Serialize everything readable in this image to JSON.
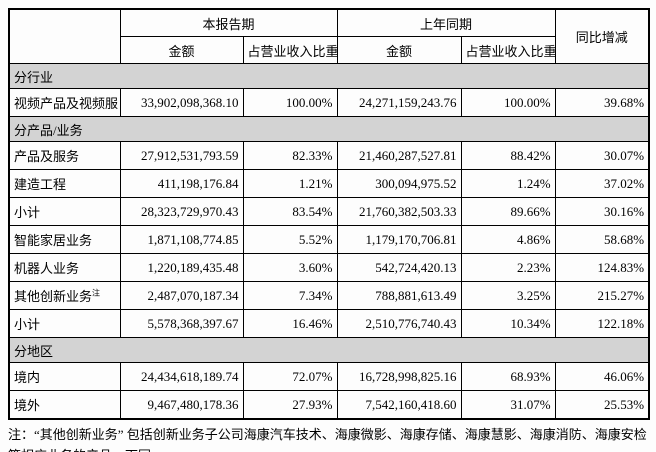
{
  "table": {
    "header": {
      "corner": "",
      "current_period": "本报告期",
      "prior_period": "上年同期",
      "yoy_change": "同比增减",
      "amount": "金额",
      "revenue_share": "占营业收入比重"
    },
    "rows": [
      {
        "type": "section",
        "label": "分行业"
      },
      {
        "type": "data",
        "label": "视频产品及视频服",
        "cells": [
          "33,902,098,368.10",
          "100.00%",
          "24,271,159,243.76",
          "100.00%",
          "39.68%"
        ]
      },
      {
        "type": "section",
        "label": "分产品/业务"
      },
      {
        "type": "data",
        "label": "产品及服务",
        "cells": [
          "27,912,531,793.59",
          "82.33%",
          "21,460,287,527.81",
          "88.42%",
          "30.07%"
        ]
      },
      {
        "type": "data",
        "label": "建造工程",
        "cells": [
          "411,198,176.84",
          "1.21%",
          "300,094,975.52",
          "1.24%",
          "37.02%"
        ]
      },
      {
        "type": "data",
        "label": "小计",
        "cells": [
          "28,323,729,970.43",
          "83.54%",
          "21,760,382,503.33",
          "89.66%",
          "30.16%"
        ]
      },
      {
        "type": "data",
        "label": "智能家居业务",
        "cells": [
          "1,871,108,774.85",
          "5.52%",
          "1,179,170,706.81",
          "4.86%",
          "58.68%"
        ]
      },
      {
        "type": "data",
        "label": "机器人业务",
        "cells": [
          "1,220,189,435.48",
          "3.60%",
          "542,724,420.13",
          "2.23%",
          "124.83%"
        ]
      },
      {
        "type": "data",
        "label": "其他创新业务",
        "label_sup": "注",
        "cells": [
          "2,487,070,187.34",
          "7.34%",
          "788,881,613.49",
          "3.25%",
          "215.27%"
        ]
      },
      {
        "type": "data",
        "label": "小计",
        "cells": [
          "5,578,368,397.67",
          "16.46%",
          "2,510,776,740.43",
          "10.34%",
          "122.18%"
        ]
      },
      {
        "type": "section",
        "label": "分地区"
      },
      {
        "type": "data",
        "label": "境内",
        "cells": [
          "24,434,618,189.74",
          "72.07%",
          "16,728,998,825.16",
          "68.93%",
          "46.06%"
        ]
      },
      {
        "type": "data",
        "label": "境外",
        "cells": [
          "9,467,480,178.36",
          "27.93%",
          "7,542,160,418.60",
          "31.07%",
          "25.53%"
        ]
      }
    ],
    "cell_names": [
      "amount-current",
      "share-current",
      "amount-prior",
      "share-prior",
      "yoy-change"
    ]
  },
  "note": "注：“其他创新业务” 包括创新业务子公司海康汽车技术、海康微影、海康存储、海康慧影、海康消防、海康安检等相应业务的产品。下同。",
  "colors": {
    "section_bg": "#d3d3d3",
    "border": "#000000",
    "text": "#000000",
    "page_bg": "#fdfdfd"
  }
}
